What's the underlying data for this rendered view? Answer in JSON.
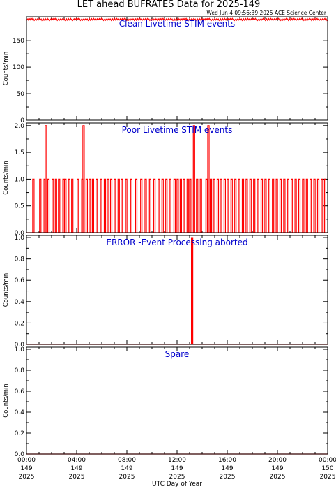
{
  "title": "LET ahead BUFRATES Data for 2025-149",
  "timestamp": "Wed Jun  4 09:56:39 2025 ACE Science Center",
  "x_axis": {
    "label": "UTC Day of Year",
    "ticks": [
      {
        "hours": 0,
        "time": "00:00",
        "doy": "149",
        "year": "2025"
      },
      {
        "hours": 4,
        "time": "04:00",
        "doy": "149",
        "year": "2025"
      },
      {
        "hours": 8,
        "time": "08:00",
        "doy": "149",
        "year": "2025"
      },
      {
        "hours": 12,
        "time": "12:00",
        "doy": "149",
        "year": "2025"
      },
      {
        "hours": 16,
        "time": "16:00",
        "doy": "149",
        "year": "2025"
      },
      {
        "hours": 20,
        "time": "20:00",
        "doy": "149",
        "year": "2025"
      },
      {
        "hours": 24,
        "time": "00:00",
        "doy": "150",
        "year": "2025"
      }
    ]
  },
  "chart_data": [
    {
      "type": "line",
      "title": "Clean Livetime STIM events",
      "ylabel": "Counts/min",
      "xlabel": "UTC Day of Year",
      "xlim": [
        0,
        24
      ],
      "ylim": [
        0,
        195
      ],
      "y_ticks": [
        0,
        50,
        100,
        150
      ],
      "y_tick_labels": [
        "0",
        "50",
        "100",
        "150"
      ],
      "baseline": 190,
      "noise": 2,
      "spikes": []
    },
    {
      "type": "line",
      "title": "Poor Livetime STIM events",
      "ylabel": "Counts/min",
      "xlabel": "UTC Day of Year",
      "xlim": [
        0,
        24
      ],
      "ylim": [
        0,
        2.05
      ],
      "y_ticks": [
        0.0,
        0.5,
        1.0,
        1.5,
        2.0
      ],
      "y_tick_labels": [
        "0.0",
        "0.5",
        "1.0",
        "1.5",
        "2.0"
      ],
      "baseline": 0,
      "spikes": [
        {
          "x": 0.55,
          "y": 1
        },
        {
          "x": 1.1,
          "y": 1
        },
        {
          "x": 1.45,
          "y": 1
        },
        {
          "x": 1.75,
          "y": 1
        },
        {
          "x": 2.1,
          "y": 1
        },
        {
          "x": 2.35,
          "y": 1
        },
        {
          "x": 2.6,
          "y": 1
        },
        {
          "x": 2.95,
          "y": 1
        },
        {
          "x": 3.1,
          "y": 1
        },
        {
          "x": 3.4,
          "y": 1
        },
        {
          "x": 3.65,
          "y": 1
        },
        {
          "x": 4.1,
          "y": 1
        },
        {
          "x": 4.45,
          "y": 1
        },
        {
          "x": 4.8,
          "y": 1
        },
        {
          "x": 5.05,
          "y": 1
        },
        {
          "x": 5.3,
          "y": 1
        },
        {
          "x": 5.6,
          "y": 1
        },
        {
          "x": 5.95,
          "y": 1
        },
        {
          "x": 6.25,
          "y": 1
        },
        {
          "x": 6.5,
          "y": 1
        },
        {
          "x": 6.75,
          "y": 1
        },
        {
          "x": 7.05,
          "y": 1
        },
        {
          "x": 7.35,
          "y": 1
        },
        {
          "x": 7.6,
          "y": 1
        },
        {
          "x": 7.95,
          "y": 1
        },
        {
          "x": 8.35,
          "y": 1
        },
        {
          "x": 8.75,
          "y": 1
        },
        {
          "x": 9.15,
          "y": 1
        },
        {
          "x": 9.5,
          "y": 1
        },
        {
          "x": 9.85,
          "y": 1
        },
        {
          "x": 10.2,
          "y": 1
        },
        {
          "x": 10.55,
          "y": 1
        },
        {
          "x": 10.85,
          "y": 1
        },
        {
          "x": 11.15,
          "y": 1
        },
        {
          "x": 11.45,
          "y": 1
        },
        {
          "x": 11.8,
          "y": 1
        },
        {
          "x": 12.05,
          "y": 1
        },
        {
          "x": 12.3,
          "y": 1
        },
        {
          "x": 12.55,
          "y": 1
        },
        {
          "x": 12.85,
          "y": 1
        },
        {
          "x": 13.05,
          "y": 1
        },
        {
          "x": 13.6,
          "y": 1
        },
        {
          "x": 13.9,
          "y": 1
        },
        {
          "x": 14.35,
          "y": 1
        },
        {
          "x": 14.7,
          "y": 1
        },
        {
          "x": 14.95,
          "y": 1
        },
        {
          "x": 15.25,
          "y": 1
        },
        {
          "x": 15.5,
          "y": 1
        },
        {
          "x": 15.8,
          "y": 1
        },
        {
          "x": 16.05,
          "y": 1
        },
        {
          "x": 16.35,
          "y": 1
        },
        {
          "x": 16.65,
          "y": 1
        },
        {
          "x": 16.95,
          "y": 1
        },
        {
          "x": 17.25,
          "y": 1
        },
        {
          "x": 17.55,
          "y": 1
        },
        {
          "x": 17.85,
          "y": 1
        },
        {
          "x": 18.15,
          "y": 1
        },
        {
          "x": 18.45,
          "y": 1
        },
        {
          "x": 18.75,
          "y": 1
        },
        {
          "x": 19.05,
          "y": 1
        },
        {
          "x": 19.35,
          "y": 1
        },
        {
          "x": 19.65,
          "y": 1
        },
        {
          "x": 19.95,
          "y": 1
        },
        {
          "x": 20.25,
          "y": 1
        },
        {
          "x": 20.55,
          "y": 1
        },
        {
          "x": 20.85,
          "y": 1
        },
        {
          "x": 21.15,
          "y": 1
        },
        {
          "x": 21.45,
          "y": 1
        },
        {
          "x": 21.75,
          "y": 1
        },
        {
          "x": 22.05,
          "y": 1
        },
        {
          "x": 22.35,
          "y": 1
        },
        {
          "x": 22.65,
          "y": 1
        },
        {
          "x": 22.95,
          "y": 1
        },
        {
          "x": 23.25,
          "y": 1
        },
        {
          "x": 23.55,
          "y": 1
        },
        {
          "x": 23.8,
          "y": 1
        },
        {
          "x": 1.55,
          "y": 2
        },
        {
          "x": 4.55,
          "y": 2
        },
        {
          "x": 13.35,
          "y": 2
        },
        {
          "x": 14.5,
          "y": 2
        }
      ]
    },
    {
      "type": "line",
      "title": "ERROR -Event Processing aborted",
      "ylabel": "Counts/min",
      "xlabel": "UTC Day of Year",
      "xlim": [
        0,
        24
      ],
      "ylim": [
        0,
        1.02
      ],
      "y_ticks": [
        0.0,
        0.2,
        0.4,
        0.6,
        0.8,
        1.0
      ],
      "y_tick_labels": [
        "0.0",
        "0.2",
        "0.4",
        "0.6",
        "0.8",
        "1.0"
      ],
      "baseline": 0,
      "spikes": [
        {
          "x": 13.2,
          "y": 1
        }
      ]
    },
    {
      "type": "line",
      "title": "Spare",
      "ylabel": "Counts/min",
      "xlabel": "UTC Day of Year",
      "xlim": [
        0,
        24
      ],
      "ylim": [
        0,
        1.02
      ],
      "y_ticks": [
        0.0,
        0.2,
        0.4,
        0.6,
        0.8,
        1.0
      ],
      "y_tick_labels": [
        "0.0",
        "0.2",
        "0.4",
        "0.6",
        "0.8",
        "1.0"
      ],
      "baseline": 0,
      "spikes": []
    }
  ]
}
